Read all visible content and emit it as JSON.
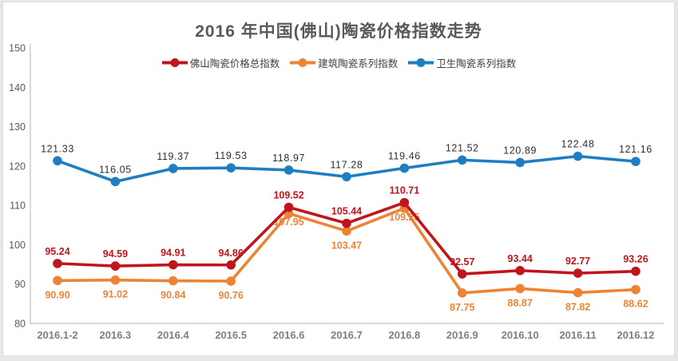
{
  "window": {
    "background_color": "#e7e7e7",
    "panel_color": "#ffffff",
    "axis_color": "#bfbfbf"
  },
  "chart_data": {
    "type": "line",
    "title": "2016 年中国(佛山)陶瓷价格指数走势",
    "categories": [
      "2016.1-2",
      "2016.3",
      "2016.4",
      "2016.5",
      "2016.6",
      "2016.7",
      "2016.8",
      "2016.9",
      "2016.10",
      "2016.11",
      "2016.12"
    ],
    "series": [
      {
        "name": "佛山陶瓷价格总指数",
        "color": "#c0151c",
        "values": [
          95.24,
          94.59,
          94.91,
          94.86,
          109.52,
          105.44,
          110.71,
          92.57,
          93.44,
          92.77,
          93.26
        ],
        "labels": [
          "95.24",
          "94.59",
          "94.91",
          "94.86",
          "109.52",
          "105.44",
          "110.71",
          "92.57",
          "93.44",
          "92.77",
          "93.26"
        ],
        "label_position": "above",
        "label_bold": true
      },
      {
        "name": "建筑陶瓷系列指数",
        "color": "#ed8435",
        "values": [
          90.9,
          91.02,
          90.84,
          90.76,
          107.95,
          103.47,
          109.25,
          87.75,
          88.87,
          87.82,
          88.62
        ],
        "labels": [
          "90.90",
          "91.02",
          "90.84",
          "90.76",
          "107.95",
          "103.47",
          "109.25",
          "87.75",
          "88.87",
          "87.82",
          "88.62"
        ],
        "label_position": "below",
        "tight_label_indices": [
          4,
          6
        ],
        "label_bold": true
      },
      {
        "name": "卫生陶瓷系列指数",
        "color": "#1f7ec2",
        "values": [
          121.33,
          116.05,
          119.37,
          119.53,
          118.97,
          117.28,
          119.46,
          121.52,
          120.89,
          122.48,
          121.16
        ],
        "labels": [
          "121.33",
          "116.05",
          "119.37",
          "119.53",
          "118.97",
          "117.28",
          "119.46",
          "121.52",
          "120.89",
          "122.48",
          "121.16"
        ],
        "label_position": "above",
        "label_bold": false,
        "label_color": "#303030"
      }
    ],
    "y_axis": {
      "min": 80,
      "max": 150,
      "step": 10,
      "ticks": [
        "80",
        "90",
        "100",
        "110",
        "120",
        "130",
        "140",
        "150"
      ]
    },
    "legend_position": "top",
    "grid": "off"
  }
}
